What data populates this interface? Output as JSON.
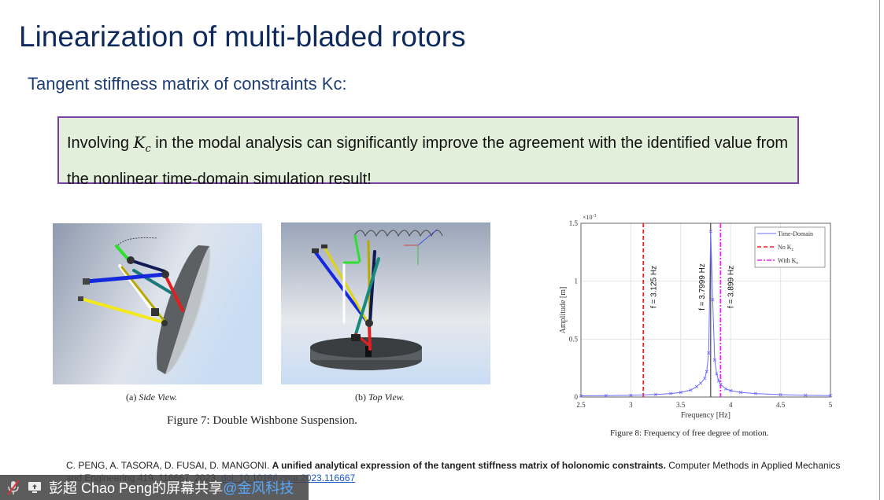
{
  "slide": {
    "title": "Linearization of multi-bladed rotors",
    "subtitle": "Tangent stiffness matrix of constraints Kc:",
    "callout": {
      "pre": "Involving ",
      "symbol": "K",
      "symbol_sub": "c",
      "post": " in the modal analysis can significantly improve the agreement with the identified value from the nonlinear time-domain simulation result!",
      "border_color": "#7a3ea8",
      "background_color": "#e2efda"
    },
    "figure7": {
      "sub_a_label": "(a) ",
      "sub_a_title": "Side View.",
      "sub_b_label": "(b) ",
      "sub_b_title": "Top View.",
      "caption": "Figure 7: Double Wishbone Suspension."
    },
    "figure8": {
      "caption": "Figure 8: Frequency of free degree of motion."
    },
    "citation": {
      "authors": "C. PENG, A. TASORA, D. FUSAI, D. MANGONI. ",
      "title": "A unified analytical expression of the tangent stiffness matrix of holonomic constraints.",
      "journal": " Computer Methods in Applied Mechanics and Engineering 419, 116667, 2023. ",
      "doi": "doi: 10.1016/j.cma.2023.116667"
    }
  },
  "share_bar": {
    "mic_icon": "microphone-muted-icon",
    "screen_icon": "screen-share-icon",
    "presenter": "彭超 Chao Peng的屏幕共享",
    "org": "@金风科技"
  },
  "chart_data": {
    "type": "line",
    "xlabel": "Frequency [Hz]",
    "ylabel": "Amplitude [m]",
    "y_exponent": "×10",
    "y_exponent_power": "-3",
    "xlim": [
      2.5,
      5
    ],
    "ylim": [
      0,
      1.5
    ],
    "xticks": [
      "2.5",
      "3",
      "3.5",
      "4",
      "4.5",
      "5"
    ],
    "yticks": [
      "0",
      "0.5",
      "1",
      "1.5"
    ],
    "grid": true,
    "legend_placement": "top-right",
    "series": [
      {
        "name": "Time-Domain",
        "color": "#6b6bff",
        "marker": "x",
        "x": [
          2.5,
          2.75,
          3.0,
          3.25,
          3.4,
          3.5,
          3.6,
          3.66,
          3.7,
          3.74,
          3.76,
          3.78,
          3.8,
          3.82,
          3.84,
          3.86,
          3.88,
          3.9,
          3.95,
          4.0,
          4.1,
          4.25,
          4.5,
          4.75,
          5.0
        ],
        "y": [
          0.01,
          0.012,
          0.015,
          0.022,
          0.03,
          0.04,
          0.06,
          0.09,
          0.12,
          0.16,
          0.22,
          0.38,
          1.43,
          0.84,
          0.32,
          0.2,
          0.14,
          0.11,
          0.07,
          0.055,
          0.04,
          0.03,
          0.02,
          0.015,
          0.012
        ]
      }
    ],
    "vlines": [
      {
        "name": "No K",
        "name_sub": "c",
        "x": 3.125,
        "color": "#ee2222",
        "style": "dashed",
        "label": "f = 3.125 Hz"
      },
      {
        "name": "",
        "x": 3.7999,
        "color": "#222222",
        "style": "solid",
        "label": "f = 3.7999 Hz"
      },
      {
        "name": "With K",
        "name_sub": "c",
        "x": 3.899,
        "color": "#ee22ee",
        "style": "dash-dot",
        "label": "f = 3.899 Hz"
      }
    ]
  }
}
